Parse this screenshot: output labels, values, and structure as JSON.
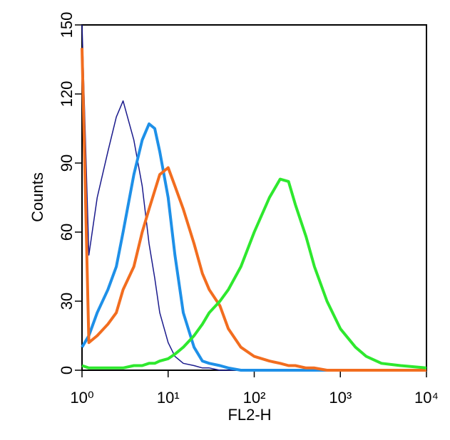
{
  "chart_data": {
    "type": "line",
    "xscale": "log",
    "xlabel": "FL2-H",
    "ylabel": "Counts",
    "xlim": [
      1,
      10000
    ],
    "ylim": [
      0,
      150
    ],
    "xticks": [
      {
        "value": 1,
        "label": "10⁰"
      },
      {
        "value": 10,
        "label": "10¹"
      },
      {
        "value": 100,
        "label": "10²"
      },
      {
        "value": 1000,
        "label": "10³"
      },
      {
        "value": 10000,
        "label": "10⁴"
      }
    ],
    "yticks": [
      0,
      30,
      60,
      90,
      120,
      150
    ],
    "x": [
      1,
      1.2,
      1.5,
      2,
      2.5,
      3,
      4,
      5,
      6,
      7,
      8,
      10,
      12,
      15,
      20,
      25,
      30,
      40,
      50,
      70,
      100,
      150,
      200,
      250,
      300,
      400,
      500,
      700,
      1000,
      1500,
      2000,
      3000,
      5000,
      10000
    ],
    "series": [
      {
        "color": "#1a1a8c",
        "width": 1.5,
        "values": [
          150,
          50,
          75,
          95,
          110,
          117,
          100,
          80,
          55,
          40,
          25,
          12,
          6,
          3,
          2,
          1,
          1,
          0,
          0,
          0,
          0,
          0,
          0,
          0,
          0,
          0,
          0,
          0,
          0,
          0,
          0,
          0,
          0,
          0
        ]
      },
      {
        "color": "#1e90e8",
        "width": 4,
        "values": [
          10,
          15,
          25,
          35,
          45,
          60,
          85,
          100,
          107,
          105,
          95,
          75,
          50,
          25,
          10,
          4,
          3,
          2,
          1,
          0,
          0,
          0,
          0,
          0,
          0,
          0,
          0,
          0,
          0,
          0,
          0,
          0,
          0,
          0
        ]
      },
      {
        "color": "#f26d1f",
        "width": 4,
        "values": [
          140,
          12,
          15,
          20,
          25,
          35,
          45,
          60,
          70,
          78,
          85,
          88,
          80,
          70,
          55,
          42,
          35,
          28,
          18,
          10,
          6,
          4,
          3,
          2,
          2,
          1,
          1,
          0,
          0,
          0,
          0,
          0,
          0,
          0
        ]
      },
      {
        "color": "#2ee82e",
        "width": 4,
        "values": [
          2,
          1,
          1,
          1,
          1,
          1,
          2,
          2,
          3,
          3,
          4,
          5,
          7,
          10,
          15,
          20,
          25,
          30,
          35,
          45,
          60,
          75,
          83,
          82,
          72,
          58,
          45,
          30,
          18,
          10,
          6,
          3,
          2,
          1
        ]
      }
    ]
  }
}
